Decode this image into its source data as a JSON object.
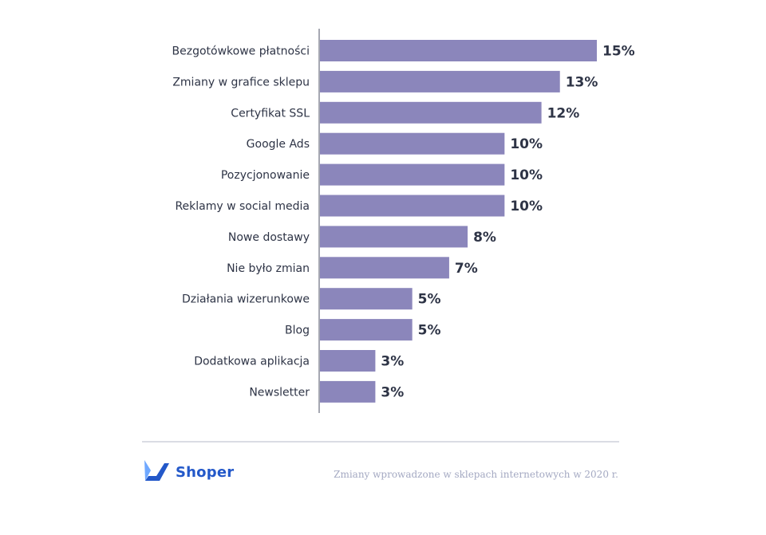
{
  "chart_data": {
    "type": "bar",
    "orientation": "horizontal",
    "categories": [
      "Bezgotówkowe płatności",
      "Zmiany w grafice sklepu",
      "Certyfikat SSL",
      "Google Ads",
      "Pozycjonowanie",
      "Reklamy w social media",
      "Nowe dostawy",
      "Nie było zmian",
      "Działania wizerunkowe",
      "Blog",
      "Dodatkowa aplikacja",
      "Newsletter"
    ],
    "values": [
      15,
      13,
      12,
      10,
      10,
      10,
      8,
      7,
      5,
      5,
      3,
      3
    ],
    "value_labels": [
      "15%",
      "13%",
      "12%",
      "10%",
      "10%",
      "10%",
      "8%",
      "7%",
      "5%",
      "5%",
      "3%",
      "3%"
    ],
    "unit": "%",
    "xlim": [
      0,
      15
    ],
    "grid": false,
    "bar_color": "#8b86bb",
    "label_color": "#2e3446"
  },
  "footer": {
    "logo_text": "Shoper",
    "caption": "Zmiany wprowadzone w sklepach internetowych w 2020 r.",
    "logo_color": "#2358c9",
    "caption_color": "#a4a9c2"
  }
}
